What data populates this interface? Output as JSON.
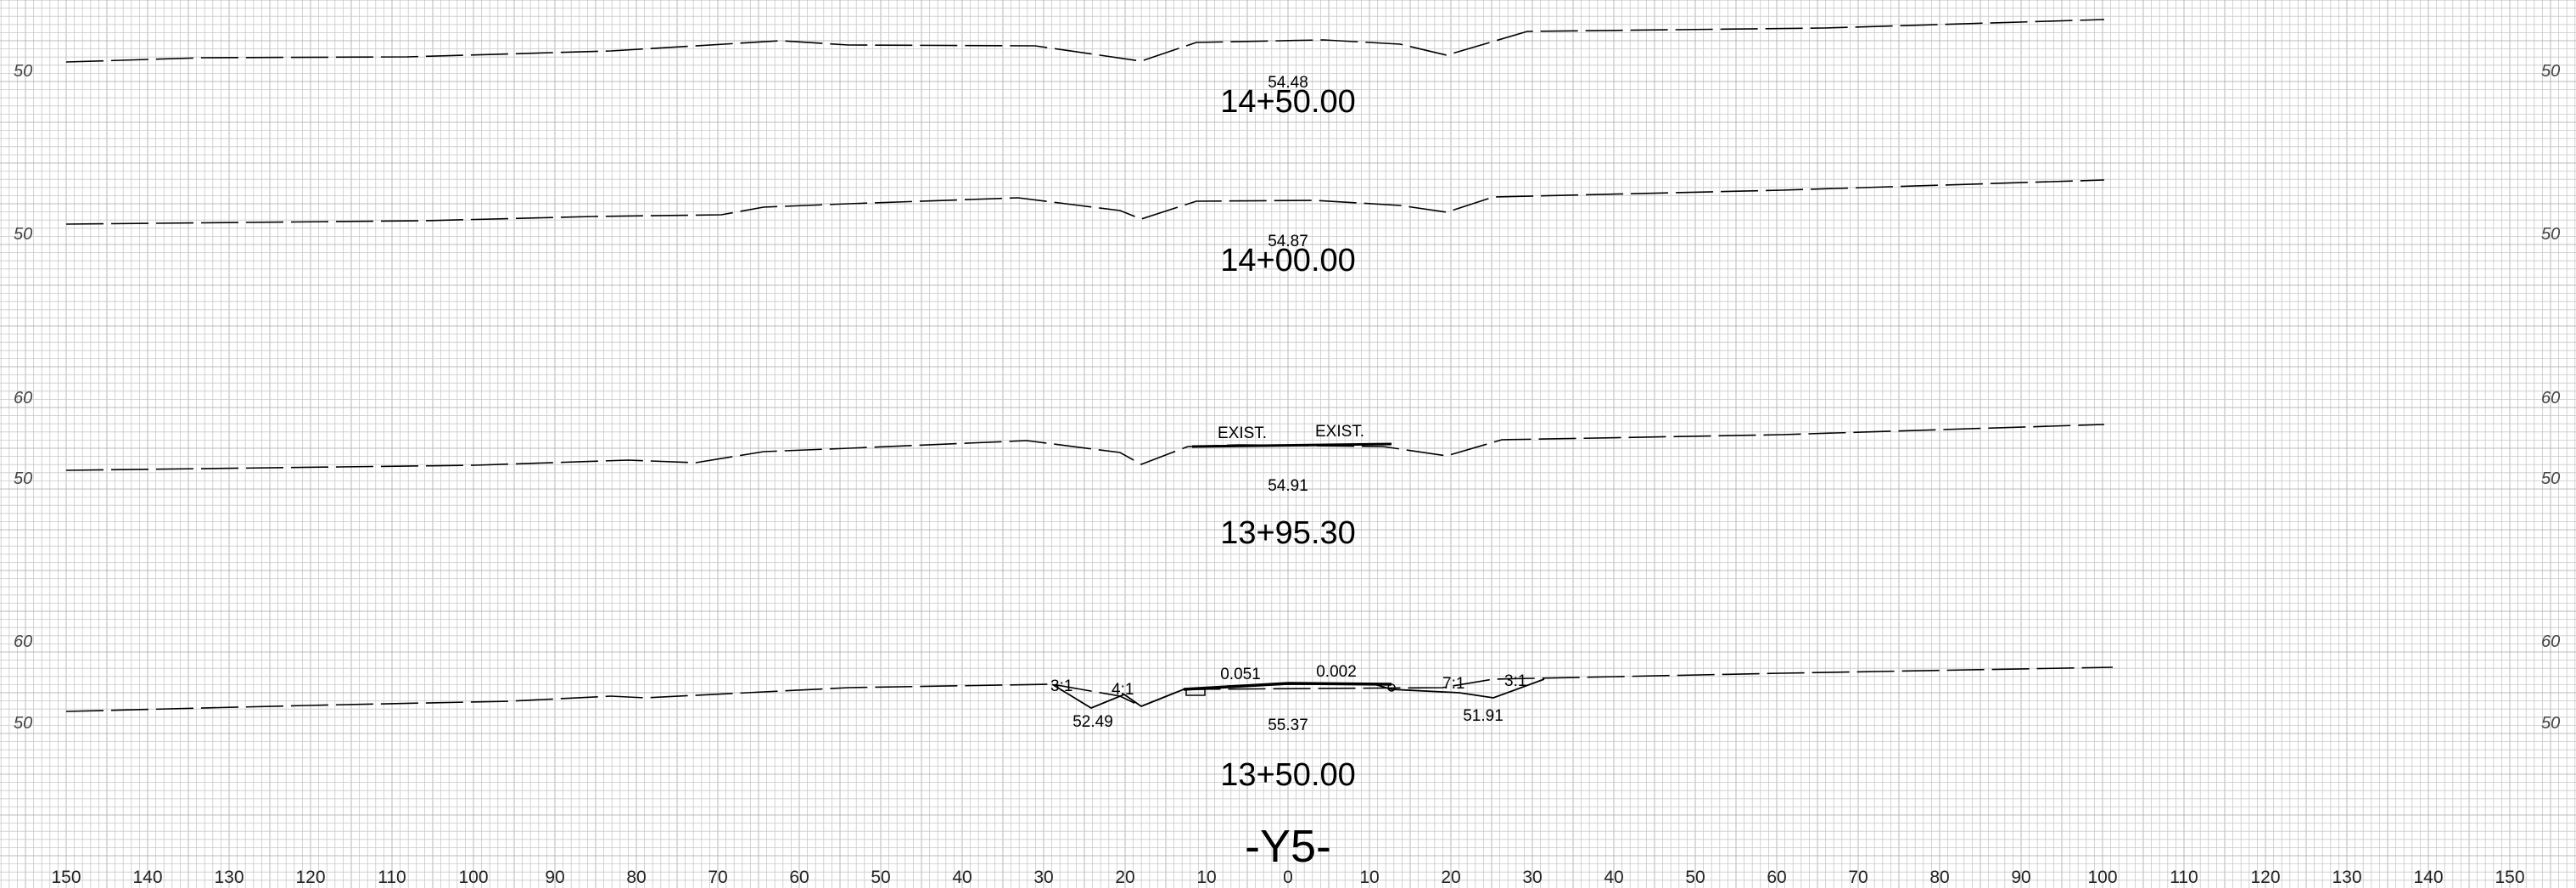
{
  "drawing_title": "-Y5-",
  "axis": {
    "offset_labels": [
      "150",
      "140",
      "130",
      "120",
      "110",
      "100",
      "90",
      "80",
      "70",
      "60",
      "50",
      "40",
      "30",
      "20",
      "10",
      "0",
      "10",
      "20",
      "30",
      "40",
      "50",
      "60",
      "70",
      "80",
      "90",
      "100",
      "110",
      "120",
      "130",
      "140",
      "150"
    ]
  },
  "colors": {
    "grid": "#c9c9c9",
    "grid_major": "#a8a8a8",
    "line": "#000000"
  },
  "sections": [
    {
      "id": "14+50",
      "station": "14+50.00",
      "centerline_elev": "54.48",
      "elev_labels": [
        "50"
      ],
      "annotations": []
    },
    {
      "id": "14+00",
      "station": "14+00.00",
      "centerline_elev": "54.87",
      "elev_labels": [
        "50"
      ],
      "annotations": []
    },
    {
      "id": "13+95.30",
      "station": "13+95.30",
      "centerline_elev": "54.91",
      "elev_labels": [
        "60",
        "50"
      ],
      "annotations": [
        {
          "key": "exist_left",
          "text": "EXIST."
        },
        {
          "key": "exist_right",
          "text": "EXIST."
        }
      ]
    },
    {
      "id": "13+50",
      "station": "13+50.00",
      "centerline_elev": "55.37",
      "elev_labels": [
        "60",
        "50"
      ],
      "annotations": [
        {
          "key": "slope_31_left",
          "text": "3:1"
        },
        {
          "key": "slope_41",
          "text": "4:1"
        },
        {
          "key": "grade_left",
          "text": "0.051"
        },
        {
          "key": "grade_right",
          "text": "0.002"
        },
        {
          "key": "slope_71",
          "text": "7:1"
        },
        {
          "key": "slope_31_right",
          "text": "3:1"
        },
        {
          "key": "ditch_left_elev",
          "text": "52.49"
        },
        {
          "key": "ditch_right_elev",
          "text": "51.91"
        }
      ]
    }
  ]
}
